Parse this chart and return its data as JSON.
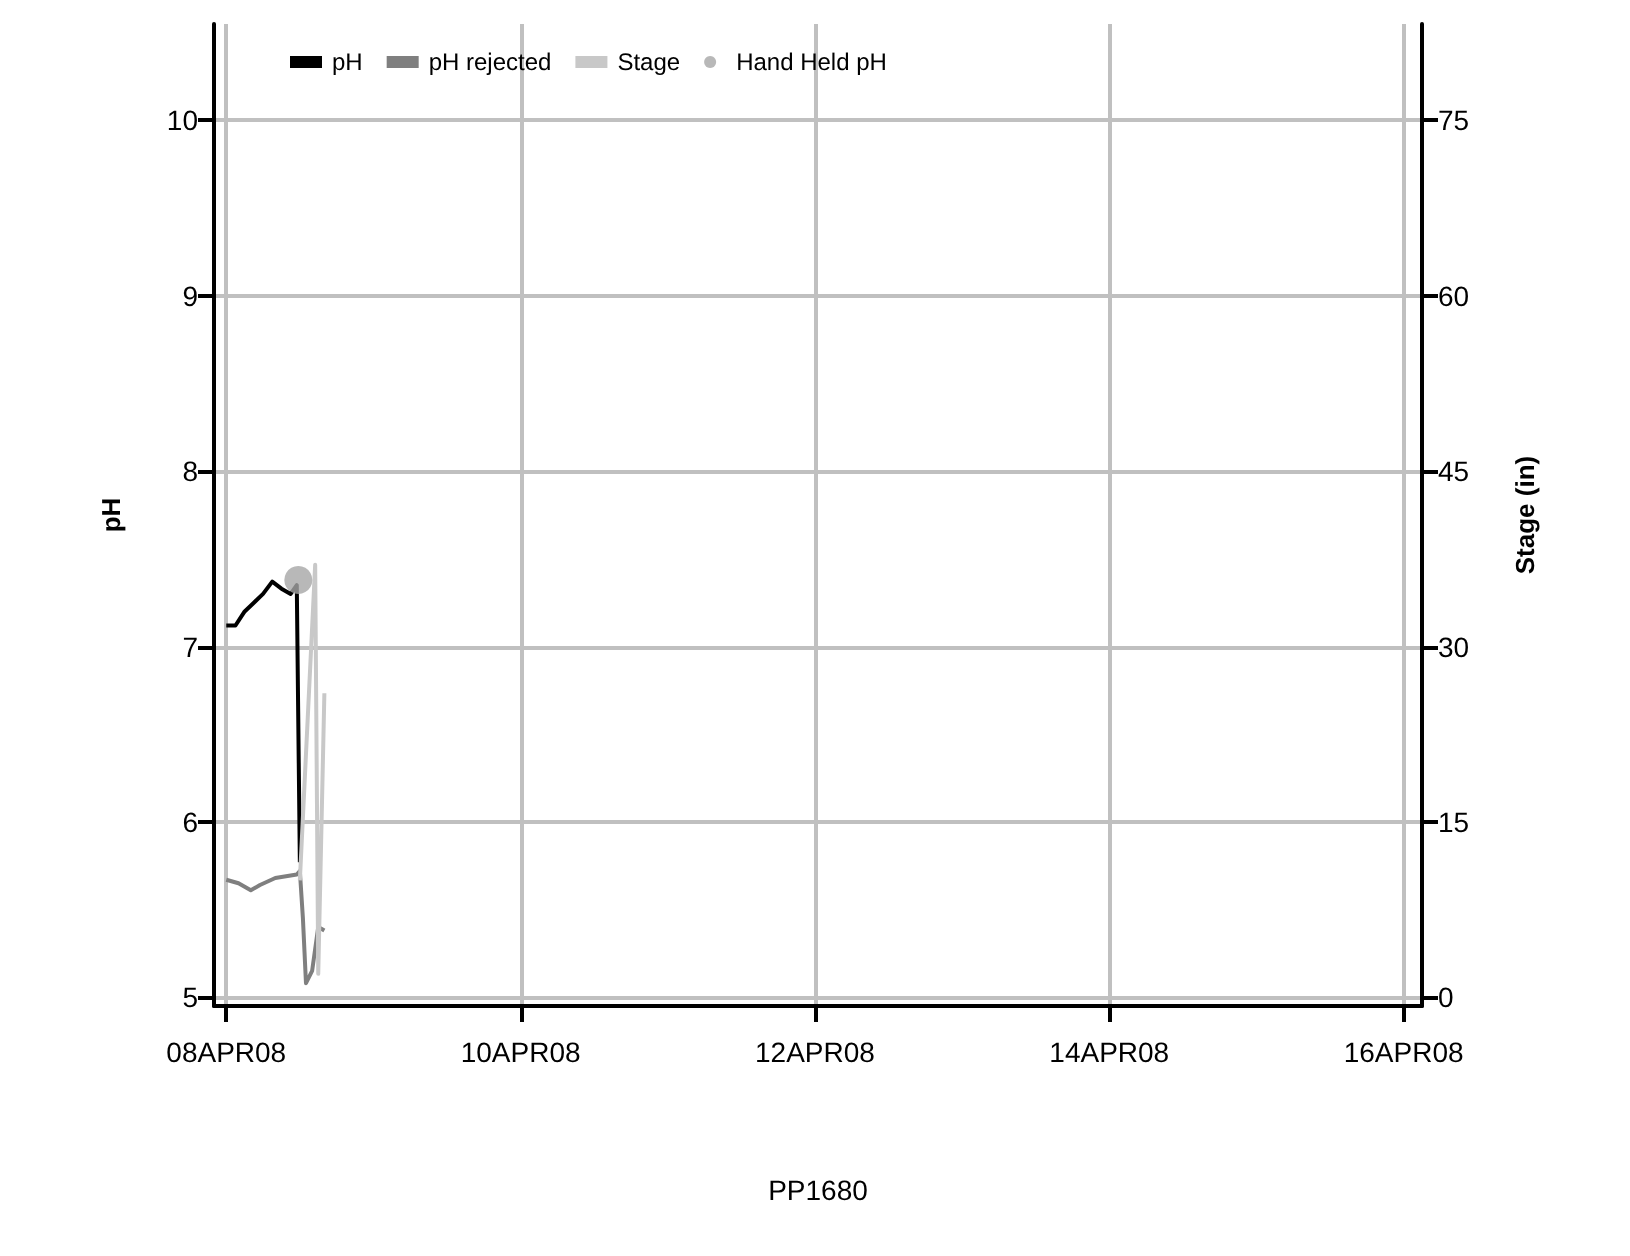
{
  "chart_data": {
    "type": "line",
    "xlabel": "PP1680",
    "ylabel": "pH",
    "y2label": "Stage (in)",
    "xlim": [
      "--04-07T22:00",
      "--04-16T03:00"
    ],
    "xticks": [
      {
        "value": "--04-08",
        "label": "08APR08"
      },
      {
        "value": "--04-10",
        "label": "10APR08"
      },
      {
        "value": "--04-12",
        "label": "12APR08"
      },
      {
        "value": "--04-14",
        "label": "14APR08"
      },
      {
        "value": "--04-16",
        "label": "16APR08"
      }
    ],
    "ylim": [
      4.95,
      10.55
    ],
    "yticks": [
      5,
      6,
      7,
      8,
      9,
      10
    ],
    "y2lim": [
      -0.75,
      83.25
    ],
    "y2ticks": [
      0,
      15,
      30,
      45,
      60,
      75
    ],
    "grid": true,
    "legend": "top left",
    "series": [
      {
        "name": "pH",
        "color": "#000000",
        "marker": "none",
        "x": [
          "--04-08T00:00",
          "--04-08T01:30",
          "--04-08T03:00",
          "--04-08T04:30",
          "--04-08T06:00",
          "--04-08T07:30",
          "--04-08T09:00",
          "--04-08T10:30",
          "--04-08T11:30",
          "--04-08T12:00"
        ],
        "values": [
          7.12,
          7.12,
          7.2,
          7.25,
          7.3,
          7.37,
          7.33,
          7.3,
          7.35,
          5.77
        ]
      },
      {
        "name": "pH rejected",
        "color": "#7f7f7f",
        "marker": "none",
        "x": [
          "--04-08T00:00",
          "--04-08T02:00",
          "--04-08T04:00",
          "--04-08T05:30",
          "--04-08T08:00",
          "--04-08T11:30",
          "--04-08T12:00",
          "--04-08T12:30",
          "--04-08T13:00",
          "--04-08T14:00",
          "--04-08T15:00",
          "--04-08T16:00"
        ],
        "values": [
          5.67,
          5.65,
          5.61,
          5.64,
          5.68,
          5.7,
          5.72,
          5.45,
          5.08,
          5.15,
          5.4,
          5.38
        ]
      },
      {
        "name": "Stage",
        "color": "#c8c8c8",
        "marker": "none",
        "axis": "y2",
        "x": [
          "--04-08T12:00",
          "--04-08T14:30",
          "--04-08T15:00",
          "--04-08T16:00"
        ],
        "values": [
          10,
          37,
          2,
          26
        ]
      },
      {
        "name": "Hand Held pH",
        "type": "scatter",
        "color": "#a6a6a6",
        "marker": "circle",
        "x": [
          "--04-08T11:45"
        ],
        "values": [
          7.38
        ]
      }
    ]
  }
}
